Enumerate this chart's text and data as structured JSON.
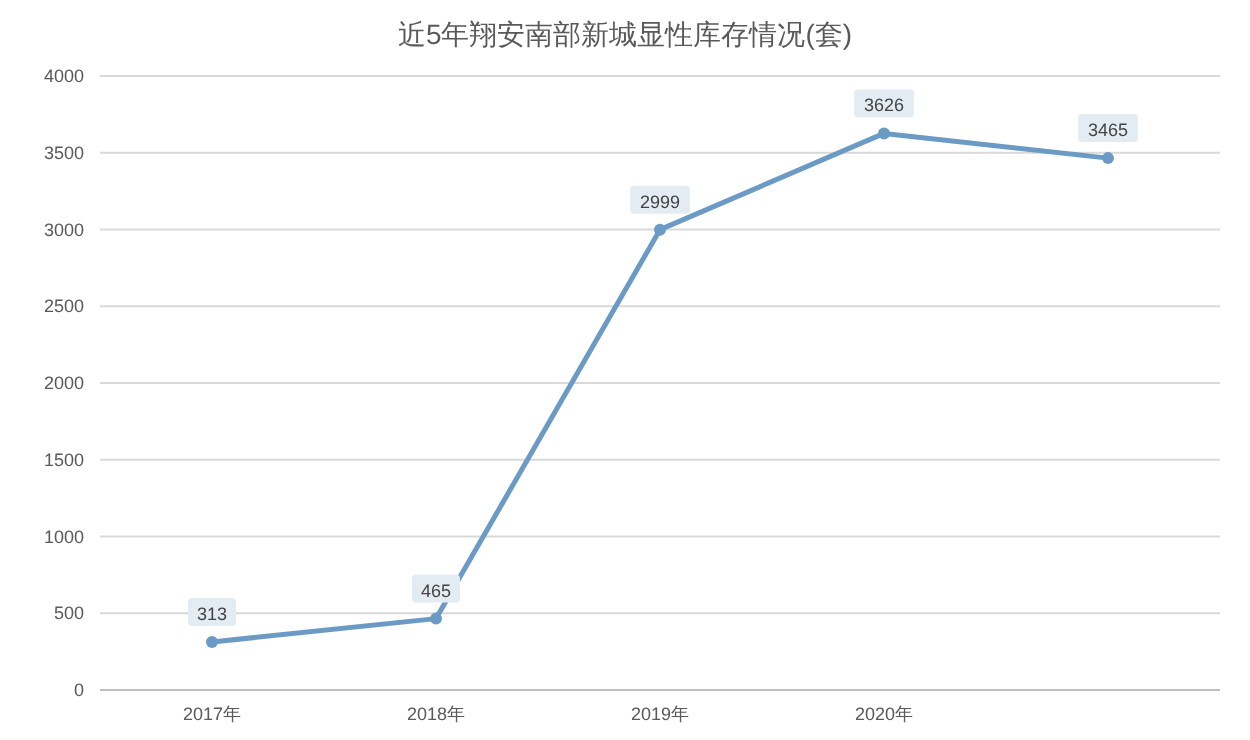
{
  "chart_data": {
    "type": "line",
    "title": "近5年翔安南部新城显性库存情况(套)",
    "categories": [
      "2017年",
      "2018年",
      "2019年",
      "2020年",
      null
    ],
    "series": [
      {
        "color": "#6b9ac4",
        "values": [
          313,
          465,
          2999,
          3626,
          3465
        ]
      }
    ],
    "ylim": [
      0,
      4000
    ],
    "yticks": [
      0,
      500,
      1000,
      1500,
      2000,
      2500,
      3000,
      3500,
      4000
    ],
    "grid": "y",
    "marker": "circle",
    "data_labels": true
  }
}
